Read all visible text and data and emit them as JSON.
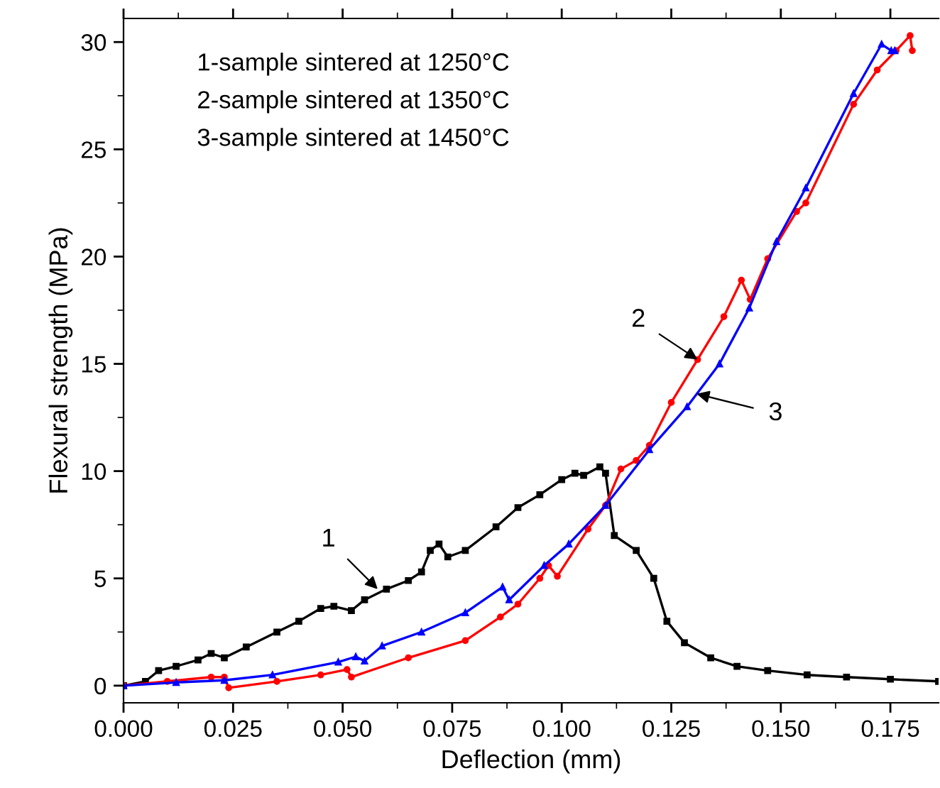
{
  "chart_data": {
    "type": "line",
    "xlabel": "Deflection (mm)",
    "ylabel": "Flexural strength (MPa)",
    "xlim": [
      0,
      0.186
    ],
    "ylim": [
      -0.8,
      31.1
    ],
    "xticks": [
      {
        "value": 0,
        "label": "0.000"
      },
      {
        "value": 0.025,
        "label": "0.025"
      },
      {
        "value": 0.05,
        "label": "0.050"
      },
      {
        "value": 0.075,
        "label": "0.075"
      },
      {
        "value": 0.1,
        "label": "0.100"
      },
      {
        "value": 0.125,
        "label": "0.125"
      },
      {
        "value": 0.15,
        "label": "0.150"
      },
      {
        "value": 0.175,
        "label": "0.175"
      }
    ],
    "yticks": [
      0,
      5,
      10,
      15,
      20,
      25,
      30
    ],
    "grid": false,
    "legend": false,
    "line_style": "solid",
    "series": [
      {
        "color": "#000000",
        "marker": "square",
        "x": [
          0,
          0.005,
          0.008,
          0.012,
          0.017,
          0.02,
          0.023,
          0.028,
          0.035,
          0.04,
          0.045,
          0.048,
          0.052,
          0.055,
          0.06,
          0.065,
          0.068,
          0.07,
          0.072,
          0.074,
          0.078,
          0.085,
          0.09,
          0.095,
          0.1,
          0.103,
          0.105,
          0.1087,
          0.11,
          0.112,
          0.117,
          0.121,
          0.124,
          0.128,
          0.134,
          0.14,
          0.147,
          0.156,
          0.165,
          0.175,
          0.186
        ],
        "values": [
          0,
          0.2,
          0.7,
          0.9,
          1.2,
          1.5,
          1.3,
          1.8,
          2.5,
          3.0,
          3.6,
          3.7,
          3.5,
          4.0,
          4.5,
          4.9,
          5.3,
          6.3,
          6.6,
          6.0,
          6.3,
          7.4,
          8.3,
          8.9,
          9.6,
          9.9,
          9.8,
          10.2,
          9.9,
          7.0,
          6.3,
          5.0,
          3.0,
          2.0,
          1.3,
          0.9,
          0.7,
          0.5,
          0.4,
          0.3,
          0.2
        ]
      },
      {
        "color": "#ff0000",
        "marker": "circle",
        "x": [
          0,
          0.01,
          0.02,
          0.023,
          0.024,
          0.035,
          0.045,
          0.051,
          0.052,
          0.065,
          0.078,
          0.086,
          0.09,
          0.095,
          0.097,
          0.099,
          0.106,
          0.11,
          0.1135,
          0.117,
          0.12,
          0.125,
          0.131,
          0.137,
          0.141,
          0.143,
          0.147,
          0.1536,
          0.1557,
          0.1666,
          0.172,
          0.1763,
          0.1795,
          0.18
        ],
        "values": [
          0,
          0.2,
          0.4,
          0.4,
          -0.1,
          0.2,
          0.5,
          0.75,
          0.4,
          1.3,
          2.1,
          3.2,
          3.8,
          5.0,
          5.6,
          5.1,
          7.3,
          8.4,
          10.1,
          10.5,
          11.2,
          13.2,
          15.2,
          17.2,
          18.9,
          18.0,
          19.9,
          22.1,
          22.5,
          27.1,
          28.7,
          29.6,
          30.3,
          29.6
        ]
      },
      {
        "color": "#0000ff",
        "marker": "triangle",
        "x": [
          0,
          0.012,
          0.023,
          0.034,
          0.049,
          0.053,
          0.055,
          0.059,
          0.068,
          0.078,
          0.0865,
          0.088,
          0.096,
          0.1016,
          0.11,
          0.12,
          0.1286,
          0.136,
          0.1428,
          0.149,
          0.1557,
          0.1666,
          0.173,
          0.1752,
          0.176
        ],
        "values": [
          0,
          0.15,
          0.25,
          0.5,
          1.1,
          1.35,
          1.15,
          1.85,
          2.5,
          3.4,
          4.6,
          4.0,
          5.6,
          6.6,
          8.4,
          11.0,
          13.0,
          15.0,
          17.6,
          20.7,
          23.2,
          27.6,
          29.9,
          29.6,
          29.6
        ]
      }
    ],
    "annotations": [
      "1-sample sintered at 1250°C",
      "2-sample sintered at 1350°C",
      "3-sample sintered at 1450°C",
      {
        "text": "1",
        "x": 0.058,
        "y": 4.5
      },
      {
        "text": "2",
        "x": 0.131,
        "y": 15.2
      },
      {
        "text": "3",
        "x": 0.1308,
        "y": 13.6
      }
    ]
  }
}
